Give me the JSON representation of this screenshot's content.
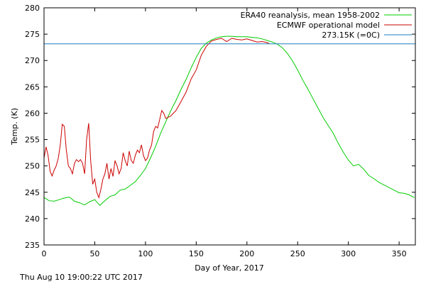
{
  "chart_data": {
    "type": "line",
    "xlabel": "Day of Year, 2017",
    "ylabel": "Temp. (K)",
    "xlim": [
      0,
      366
    ],
    "ylim": [
      235,
      280
    ],
    "xticks": [
      0,
      50,
      100,
      150,
      200,
      250,
      300,
      350
    ],
    "yticks": [
      235,
      240,
      245,
      250,
      255,
      260,
      265,
      270,
      275,
      280
    ],
    "grid": false,
    "legend_position": "top-right",
    "series": [
      {
        "name": "ERA40 reanalysis, mean 1958-2002",
        "color": "#00cc00",
        "x": [
          0,
          5,
          10,
          15,
          20,
          25,
          30,
          35,
          40,
          45,
          50,
          55,
          60,
          65,
          70,
          75,
          80,
          85,
          90,
          95,
          100,
          105,
          110,
          115,
          120,
          125,
          130,
          135,
          140,
          145,
          150,
          155,
          160,
          165,
          170,
          175,
          180,
          185,
          190,
          195,
          200,
          205,
          210,
          215,
          220,
          225,
          230,
          235,
          240,
          245,
          250,
          255,
          260,
          265,
          270,
          275,
          280,
          285,
          290,
          295,
          300,
          305,
          310,
          315,
          320,
          325,
          330,
          335,
          340,
          345,
          350,
          355,
          360,
          365
        ],
        "y": [
          244.0,
          243.4,
          243.3,
          243.6,
          243.9,
          244.1,
          243.3,
          243.0,
          242.6,
          243.2,
          243.6,
          242.5,
          243.4,
          244.2,
          244.5,
          245.4,
          245.6,
          246.3,
          247.0,
          248.2,
          249.5,
          251.5,
          253.7,
          256.2,
          258.4,
          260.5,
          262.4,
          264.5,
          266.4,
          268.6,
          270.6,
          272.3,
          273.3,
          273.9,
          274.3,
          274.5,
          274.6,
          274.6,
          274.5,
          274.5,
          274.5,
          274.4,
          274.3,
          274.1,
          273.8,
          273.5,
          273.1,
          272.4,
          271.3,
          269.9,
          268.2,
          266.3,
          264.6,
          262.8,
          261.0,
          259.2,
          257.7,
          256.2,
          254.3,
          252.6,
          251.1,
          250.0,
          250.3,
          249.4,
          248.2,
          247.6,
          246.9,
          246.4,
          245.9,
          245.4,
          244.9,
          244.8,
          244.5,
          244.0
        ]
      },
      {
        "name": "ECMWF operational model",
        "color": "#cc0000",
        "x": [
          0,
          2,
          4,
          6,
          8,
          10,
          12,
          14,
          16,
          18,
          20,
          22,
          24,
          26,
          28,
          30,
          32,
          34,
          36,
          38,
          40,
          42,
          44,
          46,
          48,
          50,
          52,
          54,
          56,
          58,
          60,
          62,
          64,
          66,
          68,
          70,
          72,
          74,
          76,
          78,
          80,
          82,
          84,
          86,
          88,
          90,
          92,
          94,
          96,
          98,
          100,
          102,
          104,
          106,
          108,
          110,
          112,
          114,
          116,
          118,
          120,
          125,
          130,
          135,
          140,
          145,
          150,
          155,
          160,
          165,
          170,
          175,
          180,
          185,
          190,
          195,
          200,
          205,
          210,
          215,
          220,
          222
        ],
        "y": [
          251.5,
          253.6,
          252.0,
          249.0,
          248.1,
          249.2,
          250.0,
          251.4,
          254.0,
          257.9,
          257.5,
          253.0,
          250.0,
          249.5,
          248.5,
          250.5,
          251.2,
          250.8,
          251.2,
          250.5,
          248.5,
          255.0,
          258.1,
          251.0,
          246.5,
          247.5,
          245.0,
          244.0,
          245.5,
          247.5,
          248.5,
          250.5,
          247.5,
          249.5,
          248.0,
          251.0,
          250.0,
          248.5,
          249.5,
          252.5,
          251.0,
          250.0,
          252.8,
          251.0,
          250.5,
          252.0,
          253.0,
          252.5,
          254.0,
          252.0,
          251.0,
          251.5,
          253.0,
          254.0,
          256.5,
          257.5,
          257.2,
          258.8,
          260.5,
          260.0,
          259.0,
          259.5,
          260.5,
          262.2,
          264.0,
          266.5,
          268.2,
          271.0,
          272.7,
          273.7,
          274.0,
          274.2,
          273.6,
          274.2,
          274.0,
          273.9,
          274.1,
          273.8,
          273.5,
          273.6,
          273.4,
          273.2
        ]
      },
      {
        "name": "273.15K (=0C)",
        "color": "#1a7fc0",
        "x": [
          0,
          366
        ],
        "y": [
          273.15,
          273.15
        ]
      }
    ]
  },
  "timestamp": "Thu Aug 10 19:00:22 UTC 2017"
}
